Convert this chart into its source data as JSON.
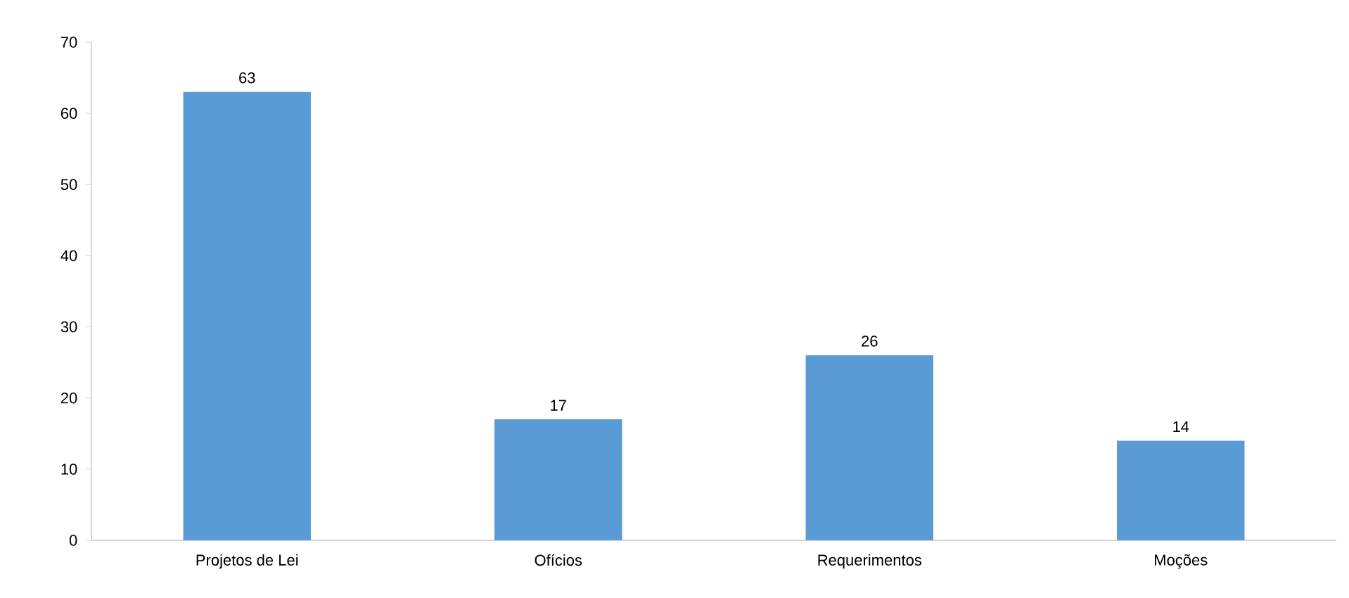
{
  "chart_data": {
    "type": "bar",
    "categories": [
      "Projetos de Lei",
      "Ofícios",
      "Requerimentos",
      "Moções"
    ],
    "values": [
      63,
      17,
      26,
      14
    ],
    "color": "#5b9bd5",
    "ylim": [
      0,
      70
    ],
    "yticks": [
      0,
      10,
      20,
      30,
      40,
      50,
      60,
      70
    ],
    "data_labels": true,
    "grid": false
  }
}
